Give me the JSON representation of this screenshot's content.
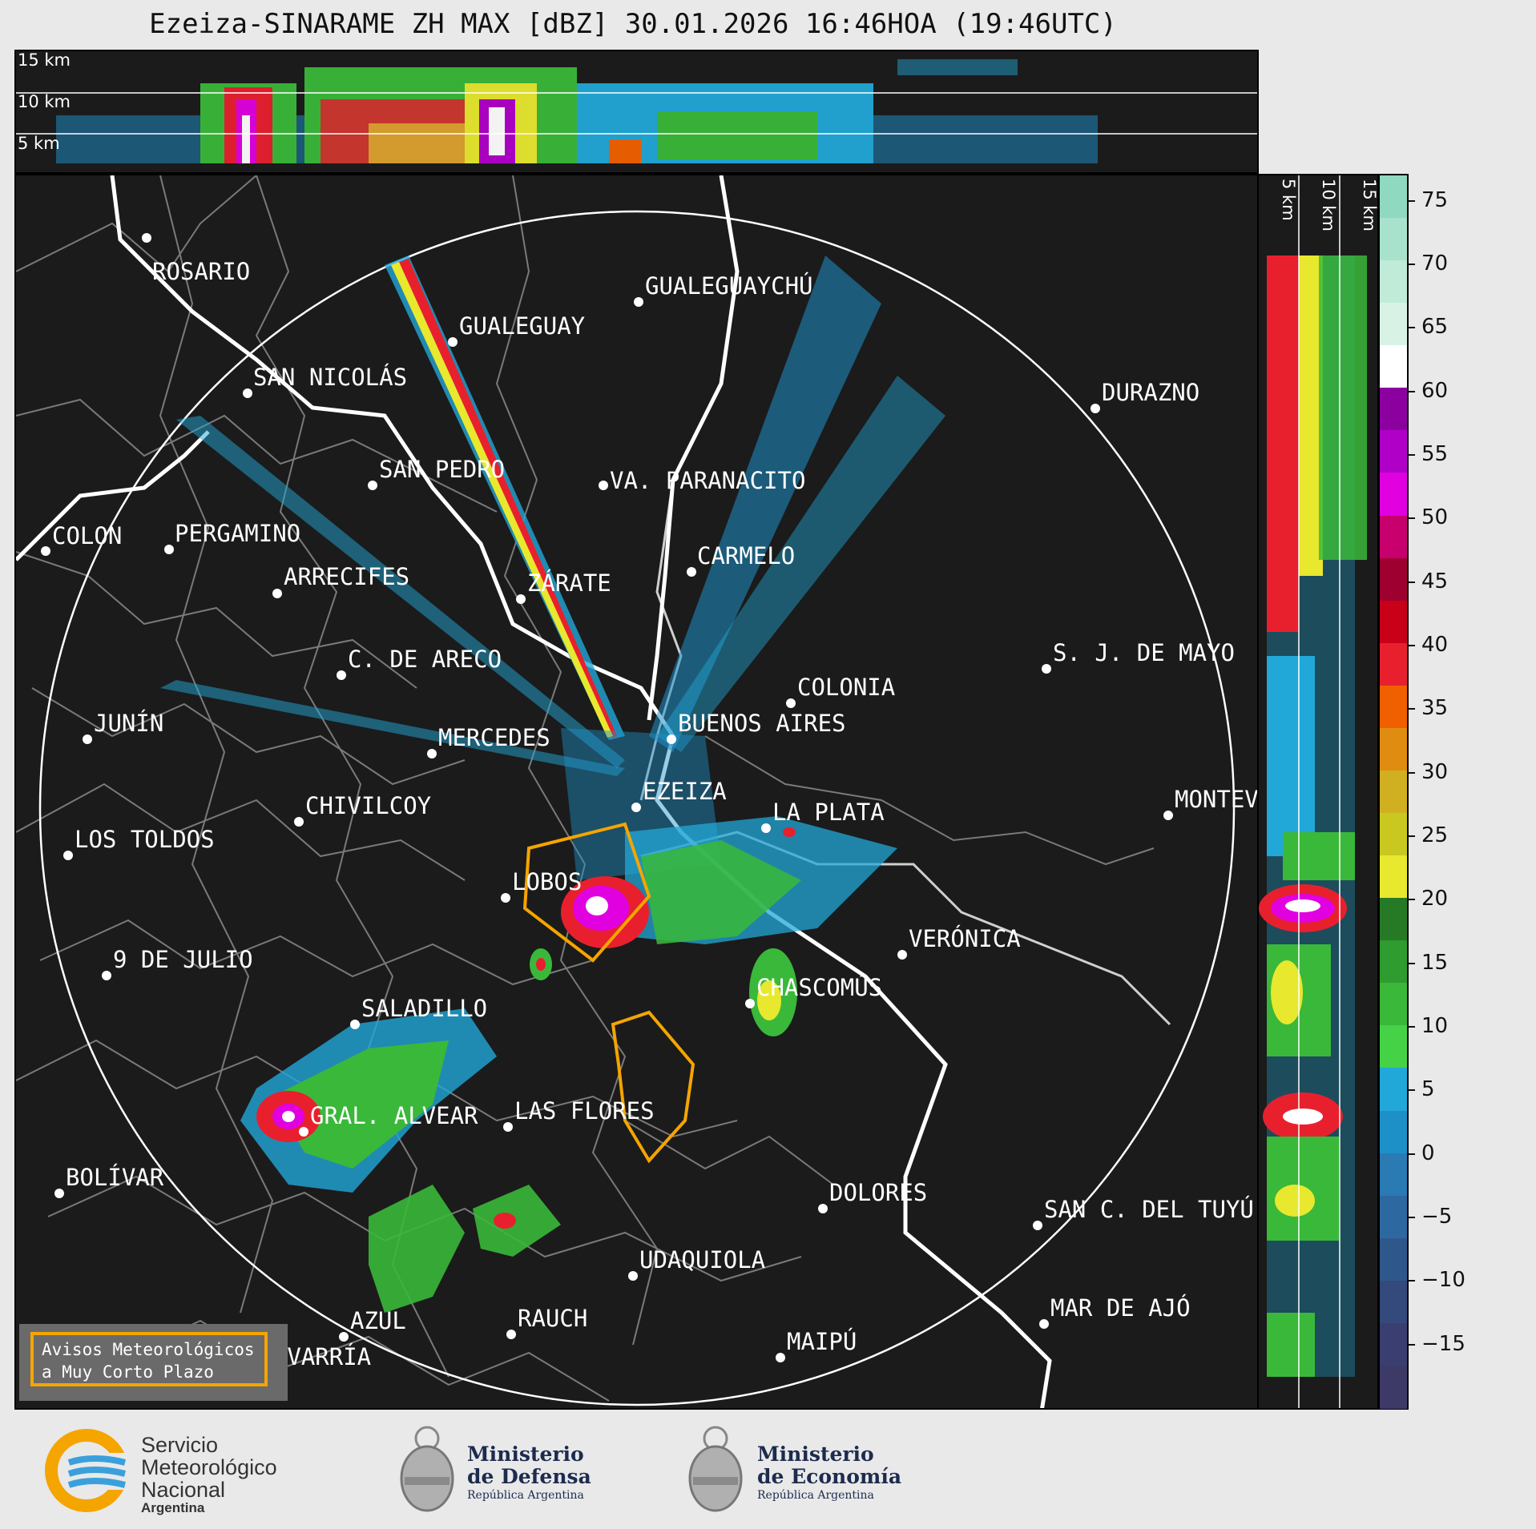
{
  "title": "Ezeiza-SINARAME ZH MAX [dBZ] 30.01.2026 16:46HOA (19:46UTC)",
  "top_panel": {
    "height_labels": [
      "15 km",
      "10 km",
      "5 km"
    ]
  },
  "side_panel": {
    "height_labels": [
      "5 km",
      "10 km",
      "15 km"
    ]
  },
  "colorbar": {
    "unit": "dBZ",
    "range": [
      -20,
      77
    ],
    "ticks": [
      "75",
      "70",
      "65",
      "60",
      "55",
      "50",
      "45",
      "40",
      "35",
      "30",
      "25",
      "20",
      "15",
      "10",
      "5",
      "0",
      "−5",
      "−10",
      "−15"
    ],
    "colors": [
      "#8fd9c0",
      "#a8e2cc",
      "#c0ebd8",
      "#d8f3e6",
      "#ffffff",
      "#8c00a0",
      "#b000c8",
      "#e000e0",
      "#c8006e",
      "#9e0030",
      "#c80018",
      "#e8202e",
      "#f06000",
      "#e08c10",
      "#d0b020",
      "#c8c820",
      "#e8e82e",
      "#267a26",
      "#2e9c2e",
      "#3ab83a",
      "#46d246",
      "#22a8d8",
      "#1e90c8",
      "#2a7ab4",
      "#2e68a0",
      "#2e588c",
      "#34497c",
      "#3a3e70",
      "#3e3a68"
    ]
  },
  "cities": [
    {
      "name": "ROSARIO"
    },
    {
      "name": "GUALEGUAYCHÚ"
    },
    {
      "name": "GUALEGUAY"
    },
    {
      "name": "SAN NICOLÁS"
    },
    {
      "name": "DURAZNO"
    },
    {
      "name": "SAN PEDRO"
    },
    {
      "name": "VA. PARANACITO"
    },
    {
      "name": "COLON"
    },
    {
      "name": "PERGAMINO"
    },
    {
      "name": "CARMELO"
    },
    {
      "name": "ARRECIFES"
    },
    {
      "name": "ZÁRATE"
    },
    {
      "name": "S. J. DE MAYO"
    },
    {
      "name": "C. DE ARECO"
    },
    {
      "name": "COLONIA"
    },
    {
      "name": "JUNÍN"
    },
    {
      "name": "BUENOS AIRES"
    },
    {
      "name": "MERCEDES"
    },
    {
      "name": "EZEIZA"
    },
    {
      "name": "MONTEV"
    },
    {
      "name": "CHIVILCOY"
    },
    {
      "name": "LA PLATA"
    },
    {
      "name": "LOS TOLDOS"
    },
    {
      "name": "LOBOS"
    },
    {
      "name": "VERÓNICA"
    },
    {
      "name": "9 DE JULIO"
    },
    {
      "name": "CHASCOMÚS"
    },
    {
      "name": "SALADILLO"
    },
    {
      "name": "GRAL. ALVEAR"
    },
    {
      "name": "LAS FLORES"
    },
    {
      "name": "BOLÍVAR"
    },
    {
      "name": "DOLORES"
    },
    {
      "name": "SAN C. DEL TUYÚ"
    },
    {
      "name": "UDAQUIOLA"
    },
    {
      "name": "MAR DE AJÓ"
    },
    {
      "name": "AZUL"
    },
    {
      "name": "RAUCH"
    },
    {
      "name": "OLAVARRÍA"
    },
    {
      "name": "MAIPÚ"
    }
  ],
  "legend": {
    "text": "Avisos Meteorológicos\na Muy Corto Plazo",
    "color": "#f5a500"
  },
  "logos": {
    "smn": {
      "line1": "Servicio",
      "line2": "Meteorológico",
      "line3": "Nacional",
      "line4": "Argentina"
    },
    "defensa": {
      "line1": "Ministerio",
      "line2": "de Defensa",
      "line3": "República Argentina"
    },
    "economia": {
      "line1": "Ministerio",
      "line2": "de Economía",
      "line3": "República Argentina"
    }
  }
}
